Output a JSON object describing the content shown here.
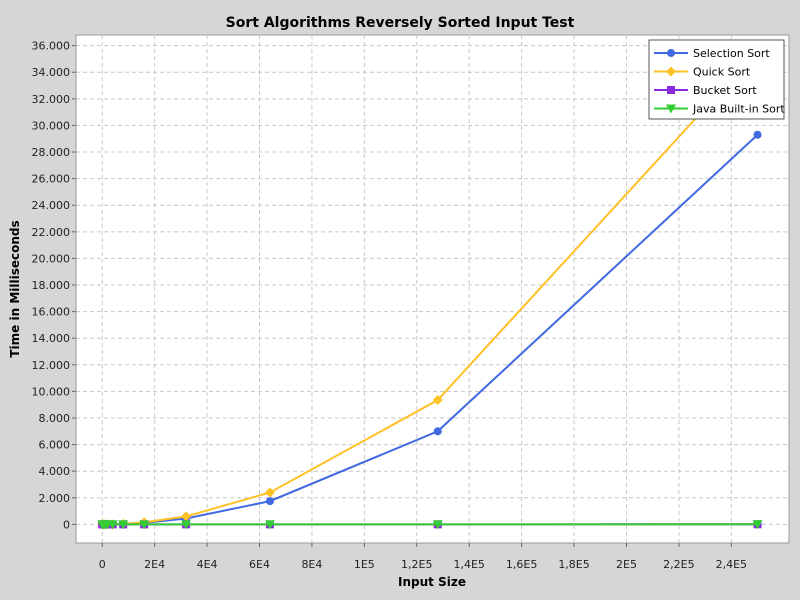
{
  "chart_data": {
    "type": "line",
    "title": "Sort Algorithms Reversely Sorted Input Test",
    "xlabel": "Input Size",
    "ylabel": "Time in Milliseconds",
    "xlim": [
      -10000,
      262000
    ],
    "ylim": [
      -1400,
      36800
    ],
    "x_ticks": [
      {
        "value": 0,
        "label": "0"
      },
      {
        "value": 20000,
        "label": "2E4"
      },
      {
        "value": 40000,
        "label": "4E4"
      },
      {
        "value": 60000,
        "label": "6E4"
      },
      {
        "value": 80000,
        "label": "8E4"
      },
      {
        "value": 100000,
        "label": "1E5"
      },
      {
        "value": 120000,
        "label": "1,2E5"
      },
      {
        "value": 140000,
        "label": "1,4E5"
      },
      {
        "value": 160000,
        "label": "1,6E5"
      },
      {
        "value": 180000,
        "label": "1,8E5"
      },
      {
        "value": 200000,
        "label": "2E5"
      },
      {
        "value": 220000,
        "label": "2,2E5"
      },
      {
        "value": 240000,
        "label": "2,4E5"
      }
    ],
    "y_ticks": [
      {
        "value": 0,
        "label": "0"
      },
      {
        "value": 2000,
        "label": "2.000"
      },
      {
        "value": 4000,
        "label": "4.000"
      },
      {
        "value": 6000,
        "label": "6.000"
      },
      {
        "value": 8000,
        "label": "8.000"
      },
      {
        "value": 10000,
        "label": "10.000"
      },
      {
        "value": 12000,
        "label": "12.000"
      },
      {
        "value": 14000,
        "label": "14.000"
      },
      {
        "value": 16000,
        "label": "16.000"
      },
      {
        "value": 18000,
        "label": "18.000"
      },
      {
        "value": 20000,
        "label": "20.000"
      },
      {
        "value": 22000,
        "label": "22.000"
      },
      {
        "value": 24000,
        "label": "24.000"
      },
      {
        "value": 26000,
        "label": "26.000"
      },
      {
        "value": 28000,
        "label": "28.000"
      },
      {
        "value": 30000,
        "label": "30.000"
      },
      {
        "value": 32000,
        "label": "32.000"
      },
      {
        "value": 34000,
        "label": "34.000"
      },
      {
        "value": 36000,
        "label": "36.000"
      }
    ],
    "grid": true,
    "legend_position": "top-right",
    "x": [
      0,
      500,
      1000,
      2000,
      4000,
      8000,
      16000,
      32000,
      64000,
      128000,
      250000
    ],
    "series": [
      {
        "name": "Selection Sort",
        "color": "#4169e1",
        "marker": "circle",
        "values": [
          0,
          0,
          0,
          2,
          8,
          30,
          110,
          440,
          1750,
          7000,
          29300
        ]
      },
      {
        "name": "Quick Sort",
        "color": "#ffc125",
        "marker": "diamond",
        "values": [
          0,
          0,
          0,
          3,
          10,
          40,
          150,
          600,
          2400,
          9350,
          35600
        ]
      },
      {
        "name": "Bucket Sort",
        "color": "#8a2be2",
        "marker": "square",
        "values": [
          0,
          0,
          0,
          0,
          0,
          0,
          1,
          1,
          2,
          4,
          8
        ]
      },
      {
        "name": "Java Built-in Sort",
        "color": "#32cd32",
        "marker": "triangle-down",
        "values": [
          0,
          0,
          0,
          0,
          0,
          0,
          1,
          1,
          2,
          3,
          6
        ]
      }
    ]
  }
}
